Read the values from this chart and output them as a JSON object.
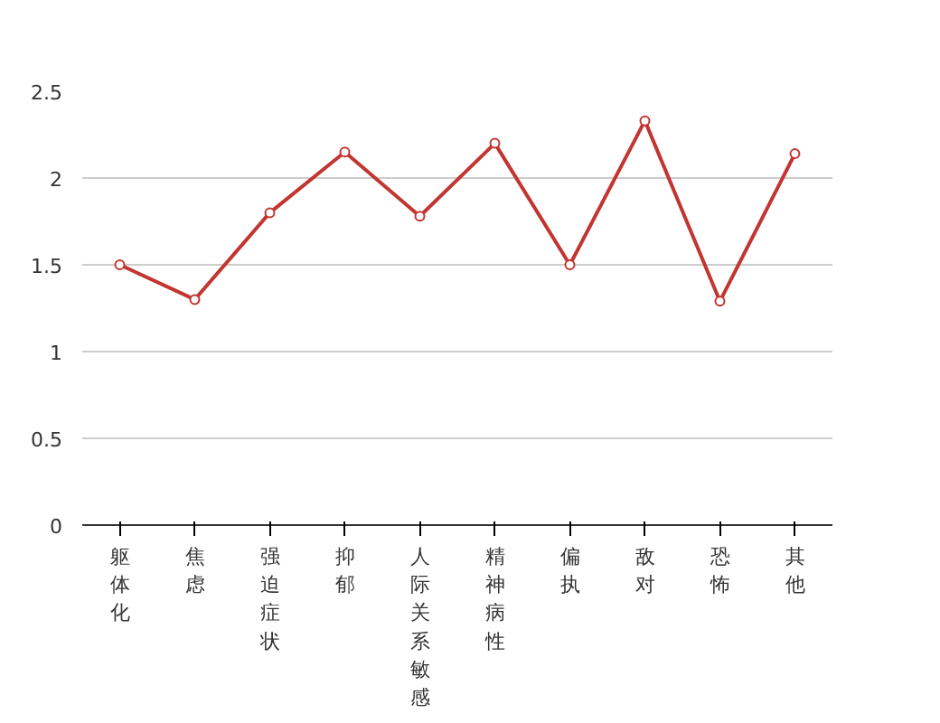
{
  "chart_data": {
    "type": "line",
    "categories": [
      "躯体化",
      "焦虑",
      "强迫症状",
      "抑郁",
      "人际关系敏感",
      "精神病性",
      "偏执",
      "敌对",
      "恐怖",
      "其他"
    ],
    "series": [
      {
        "color": "#c23531",
        "values": [
          1.5,
          1.3,
          1.8,
          2.15,
          1.78,
          2.2,
          1.5,
          2.33,
          1.29,
          2.14
        ]
      }
    ],
    "ylim": [
      0,
      2.5
    ],
    "yticks": [
      0,
      0.5,
      1,
      1.5,
      2,
      2.5
    ],
    "grid": "y",
    "marker": "circle",
    "line_style": "solid"
  }
}
